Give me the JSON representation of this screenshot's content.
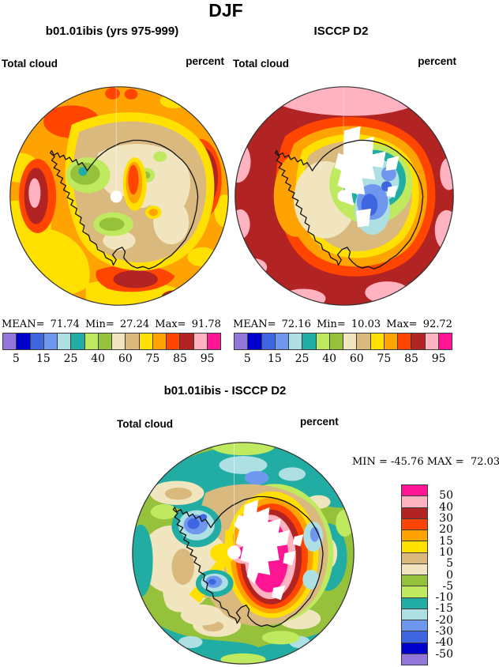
{
  "title": "DJF",
  "scale": {
    "colors_low_to_high": [
      "#9377DB",
      "#0000CC",
      "#3E66E0",
      "#6F97ED",
      "#AEDFE3",
      "#22ADA4",
      "#BFE95F",
      "#95C23A",
      "#F0E5BF",
      "#DAB97E",
      "#FFE000",
      "#FFA302",
      "#FF4500",
      "#B22323",
      "#FFB3C1",
      "#FF1493"
    ],
    "top_tick_labels": [
      "5",
      "15",
      "25",
      "40",
      "60",
      "75",
      "85",
      "95"
    ],
    "diff_tick_labels": [
      "50",
      "40",
      "30",
      "20",
      "15",
      "10",
      "5",
      "0",
      "-5",
      "-10",
      "-15",
      "-20",
      "-30",
      "-40",
      "-50"
    ]
  },
  "panels": {
    "model": {
      "title": "b01.01ibis (yrs 975-999)",
      "field": "Total cloud",
      "units": "percent",
      "stats": {
        "mean_label": "MEAN=",
        "mean": "71.74",
        "min_label": "Min=",
        "min": "27.24",
        "max_label": "Max=",
        "max": "91.78"
      }
    },
    "obs": {
      "title": "ISCCP D2",
      "field": "Total cloud",
      "units": "percent",
      "stats": {
        "mean_label": "MEAN=",
        "mean": "72.16",
        "min_label": "Min=",
        "min": "10.03",
        "max_label": "Max=",
        "max": "92.72"
      }
    },
    "diff": {
      "title": "b01.01ibis - ISCCP D2",
      "field": "Total cloud",
      "units": "percent",
      "minmax_line": "MIN = -45.76 MAX =  72.03"
    }
  },
  "chart_data": [
    {
      "type": "heatmap",
      "subtype": "polar_stereographic_filled_contour_map",
      "panel": "top-left",
      "season": "DJF",
      "title": "b01.01ibis (yrs 975-999)",
      "variable": "Total cloud",
      "units": "percent",
      "region": "Antarctic / South polar cap",
      "stats": {
        "mean": 71.74,
        "min": 27.24,
        "max": 91.78
      },
      "contour_levels": [
        5,
        10,
        15,
        20,
        25,
        30,
        40,
        50,
        60,
        70,
        75,
        80,
        85,
        90,
        95
      ],
      "labeled_levels": [
        5,
        15,
        25,
        40,
        60,
        75,
        85,
        95
      ],
      "palette_low_to_high": [
        "#9377DB",
        "#0000CC",
        "#3E66E0",
        "#6F97ED",
        "#AEDFE3",
        "#22ADA4",
        "#BFE95F",
        "#95C23A",
        "#F0E5BF",
        "#DAB97E",
        "#FFE000",
        "#FFA302",
        "#FF4500",
        "#B22323",
        "#FFB3C1",
        "#FF1493"
      ],
      "legend_position": "bottom",
      "notes": "Mostly 75-85% cloud (orange) over ocean, 85-95% (red/dark red with >95 pink cores) in storm-track lobes, 50-75% (tan/cream) over Antarctica with 25-50% (green, teal spot) interior minima; white dot at pole"
    },
    {
      "type": "heatmap",
      "subtype": "polar_stereographic_filled_contour_map",
      "panel": "top-right",
      "season": "DJF",
      "title": "ISCCP D2",
      "variable": "Total cloud",
      "units": "percent",
      "region": "Antarctic / South polar cap",
      "stats": {
        "mean": 72.16,
        "min": 10.03,
        "max": 92.72
      },
      "contour_levels": [
        5,
        10,
        15,
        20,
        25,
        30,
        40,
        50,
        60,
        70,
        75,
        80,
        85,
        90,
        95
      ],
      "labeled_levels": [
        5,
        15,
        25,
        40,
        60,
        75,
        85,
        95
      ],
      "palette_low_to_high": [
        "#9377DB",
        "#0000CC",
        "#3E66E0",
        "#6F97ED",
        "#AEDFE3",
        "#22ADA4",
        "#BFE95F",
        "#95C23A",
        "#F0E5BF",
        "#DAB97E",
        "#FFE000",
        "#FFA302",
        "#FF4500",
        "#B22323",
        "#FFB3C1",
        "#FF1493"
      ],
      "legend_position": "bottom",
      "notes": "85-95% (dark red) over ocean with >95 pink patches, steep coastal gradient (orange/yellow/tan), 10-40% (green/teal/cyan/blue) over East Antarctic interior, white missing-data wedges near pole"
    },
    {
      "type": "heatmap",
      "subtype": "polar_stereographic_filled_contour_difference_map",
      "panel": "bottom",
      "title": "b01.01ibis - ISCCP D2",
      "variable": "Total cloud difference",
      "units": "percent",
      "stats": {
        "min": -45.76,
        "max": 72.03
      },
      "contour_levels": [
        -50,
        -40,
        -30,
        -20,
        -15,
        -10,
        -5,
        0,
        5,
        10,
        15,
        20,
        30,
        40,
        50
      ],
      "palette_low_to_high": [
        "#9377DB",
        "#0000CC",
        "#3E66E0",
        "#6F97ED",
        "#AEDFE3",
        "#22ADA4",
        "#BFE95F",
        "#95C23A",
        "#F0E5BF",
        "#DAB97E",
        "#FFE000",
        "#FFA302",
        "#FF4500",
        "#B22323",
        "#FFB3C1",
        "#FF1493"
      ],
      "legend_position": "right",
      "notes": "Ocean mostly -5 to -15 (green/teal) with 0-10 (cream/tan) patches and -20 to -40 (cyan/blue) cells; large +40 to >50 (red/pink/magenta) anomaly over East Antarctica with white missing-data wedges"
    }
  ]
}
